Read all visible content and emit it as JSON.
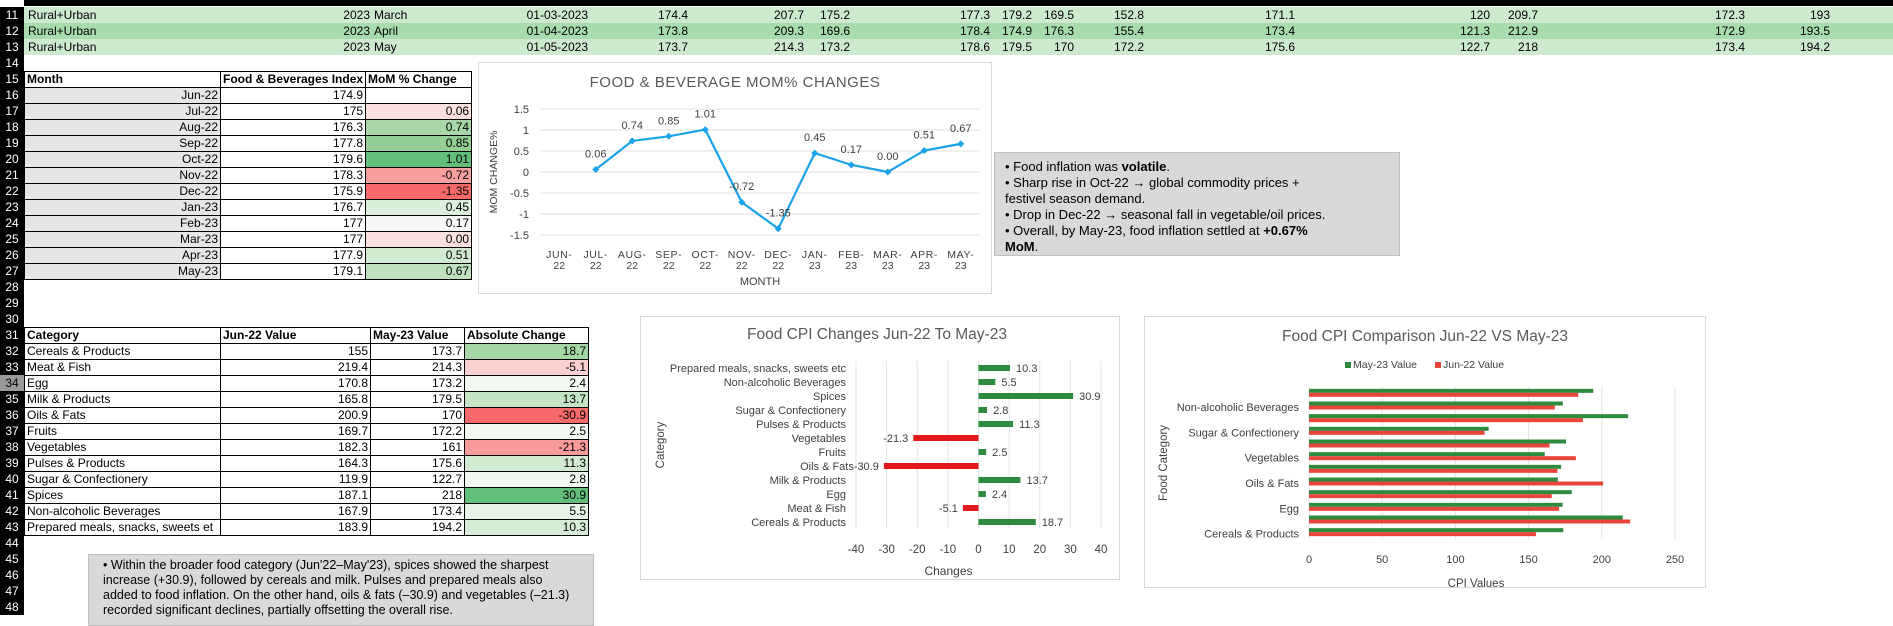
{
  "top_rows": [
    {
      "row": "11",
      "region": "Rural+Urban",
      "year": "2023",
      "month": "March",
      "date": "01-03-2023",
      "v1": "174.4",
      "v2": "207.7",
      "v3": "175.2",
      "v4": "177.3",
      "v5": "179.2",
      "v6": "169.5",
      "v7": "152.8",
      "v8": "171.1",
      "v9": "120",
      "v10": "209.7",
      "v11": "172.3",
      "v12": "193"
    },
    {
      "row": "12",
      "region": "Rural+Urban",
      "year": "2023",
      "month": "April",
      "date": "01-04-2023",
      "v1": "173.8",
      "v2": "209.3",
      "v3": "169.6",
      "v4": "178.4",
      "v5": "174.9",
      "v6": "176.3",
      "v7": "155.4",
      "v8": "173.4",
      "v9": "121.3",
      "v10": "212.9",
      "v11": "172.9",
      "v12": "193.5"
    },
    {
      "row": "13",
      "region": "Rural+Urban",
      "year": "2023",
      "month": "May",
      "date": "01-05-2023",
      "v1": "173.7",
      "v2": "214.3",
      "v3": "173.2",
      "v4": "178.6",
      "v5": "179.5",
      "v6": "170",
      "v7": "172.2",
      "v8": "175.6",
      "v9": "122.7",
      "v10": "218",
      "v11": "173.4",
      "v12": "194.2"
    }
  ],
  "row_numbers": [
    "11",
    "12",
    "13",
    "14",
    "15",
    "16",
    "17",
    "18",
    "19",
    "20",
    "21",
    "22",
    "23",
    "24",
    "25",
    "26",
    "27",
    "28",
    "29",
    "30",
    "31",
    "32",
    "33",
    "34",
    "35",
    "36",
    "37",
    "38",
    "39",
    "40",
    "41",
    "42",
    "43",
    "44",
    "45",
    "46",
    "47",
    "48"
  ],
  "mom_table": {
    "headers": [
      "Month",
      "Food & Beverages Index",
      "MoM % Change"
    ],
    "rows": [
      {
        "month": "Jun-22",
        "index": "174.9",
        "mom": "",
        "color": "#ffffff"
      },
      {
        "month": "Jul-22",
        "index": "175",
        "mom": "0.06",
        "color": "#fbe0e0"
      },
      {
        "month": "Aug-22",
        "index": "176.3",
        "mom": "0.74",
        "color": "#a9d7a9"
      },
      {
        "month": "Sep-22",
        "index": "177.8",
        "mom": "0.85",
        "color": "#94ce95"
      },
      {
        "month": "Oct-22",
        "index": "179.6",
        "mom": "1.01",
        "color": "#63be7b"
      },
      {
        "month": "Nov-22",
        "index": "178.3",
        "mom": "-0.72",
        "color": "#f8a0a0"
      },
      {
        "month": "Dec-22",
        "index": "175.9",
        "mom": "-1.35",
        "color": "#f8696b"
      },
      {
        "month": "Jan-23",
        "index": "176.7",
        "mom": "0.45",
        "color": "#dcefdc"
      },
      {
        "month": "Feb-23",
        "index": "177",
        "mom": "0.17",
        "color": "#f7f7f7"
      },
      {
        "month": "Mar-23",
        "index": "177",
        "mom": "0.00",
        "color": "#fbe0e0"
      },
      {
        "month": "Apr-23",
        "index": "177.9",
        "mom": "0.51",
        "color": "#d2ead2"
      },
      {
        "month": "May-23",
        "index": "179.1",
        "mom": "0.67",
        "color": "#bfe1bf"
      }
    ]
  },
  "cat_table": {
    "headers": [
      "Category",
      "Jun-22 Value",
      "May-23 Value",
      "Absolute Change"
    ],
    "rows": [
      {
        "cat": "Cereals & Products",
        "jun": "155",
        "may": "173.7",
        "chg": "18.7",
        "color": "#a4d6a6"
      },
      {
        "cat": "Meat & Fish",
        "jun": "219.4",
        "may": "214.3",
        "chg": "-5.1",
        "color": "#fbd0d0"
      },
      {
        "cat": "Egg",
        "jun": "170.8",
        "may": "173.2",
        "chg": "2.4",
        "color": "#f3f8f3"
      },
      {
        "cat": "Milk & Products",
        "jun": "165.8",
        "may": "179.5",
        "chg": "13.7",
        "color": "#c5e5c6"
      },
      {
        "cat": "Oils & Fats",
        "jun": "200.9",
        "may": "170",
        "chg": "-30.9",
        "color": "#f8696b"
      },
      {
        "cat": "Fruits",
        "jun": "169.7",
        "may": "172.2",
        "chg": "2.5",
        "color": "#f2f8f2"
      },
      {
        "cat": "Vegetables",
        "jun": "182.3",
        "may": "161",
        "chg": "-21.3",
        "color": "#f99a9b"
      },
      {
        "cat": "Pulses & Products",
        "jun": "164.3",
        "may": "175.6",
        "chg": "11.3",
        "color": "#d1ead1"
      },
      {
        "cat": "Sugar & Confectionery",
        "jun": "119.9",
        "may": "122.7",
        "chg": "2.8",
        "color": "#f1f8f1"
      },
      {
        "cat": "Spices",
        "jun": "187.1",
        "may": "218",
        "chg": "30.9",
        "color": "#63be7b"
      },
      {
        "cat": "Non-alcoholic Beverages",
        "jun": "167.9",
        "may": "173.4",
        "chg": "5.5",
        "color": "#e6f3e6"
      },
      {
        "cat": "Prepared meals, snacks, sweets et",
        "jun": "183.9",
        "may": "194.2",
        "chg": "10.3",
        "color": "#d6ecd6"
      }
    ]
  },
  "note1": {
    "lines": [
      {
        "pre": "• Food inflation was ",
        "bold": "volatile",
        "post": "."
      },
      {
        "pre": "• Sharp rise in Oct-22 → global commodity prices +",
        "bold": "",
        "post": ""
      },
      {
        "pre": "festivel season demand.",
        "bold": "",
        "post": ""
      },
      {
        "pre": "• Drop in Dec-22 → seasonal fall in vegetable/oil prices.",
        "bold": "",
        "post": ""
      },
      {
        "pre": "• Overall, by May-23, food inflation settled at ",
        "bold": "+0.67%",
        "post": ""
      },
      {
        "pre": "",
        "bold": "MoM",
        "post": "."
      }
    ]
  },
  "note2": {
    "text": "• Within the broader food category (Jun'22–May'23), spices showed the sharpest increase (+30.9), followed by cereals and milk. Pulses and prepared meals also added to food inflation. On the other hand, oils & fats (–30.9) and vegetables (–21.3) recorded significant declines, partially offsetting the overall rise."
  },
  "chart_data": [
    {
      "type": "line",
      "title": "FOOD & BEVERAGE MOM% CHANGES",
      "xlabel": "MONTH",
      "ylabel": "MOM CHANGE%",
      "categories": [
        "JUN-22",
        "JUL-22",
        "AUG-22",
        "SEP-22",
        "OCT-22",
        "NOV-22",
        "DEC-22",
        "JAN-23",
        "FEB-23",
        "MAR-23",
        "APR-23",
        "MAY-23"
      ],
      "values": [
        null,
        0.06,
        0.74,
        0.85,
        1.01,
        -0.72,
        -1.35,
        0.45,
        0.17,
        0.0,
        0.51,
        0.67
      ],
      "labels": [
        "",
        "0.06",
        "0.74",
        "0.85",
        "1.01",
        "-0.72",
        "-1.35",
        "0.45",
        "0.17",
        "0.00",
        "0.51",
        "0.67"
      ],
      "yticks": [
        "1.5",
        "1",
        "0.5",
        "0",
        "-0.5",
        "-1",
        "-1.5"
      ],
      "ylim": [
        -1.5,
        1.5
      ],
      "color": "#1aa3e8"
    },
    {
      "type": "bar",
      "orientation": "horizontal",
      "title": "Food CPI Changes Jun-22 To May-23",
      "xlabel": "Changes",
      "ylabel": "Category",
      "categories": [
        "Prepared meals, snacks, sweets etc",
        "Non-alcoholic Beverages",
        "Spices",
        "Sugar & Confectionery",
        "Pulses & Products",
        "Vegetables",
        "Fruits",
        "Oils & Fats",
        "Milk & Products",
        "Egg",
        "Meat & Fish",
        "Cereals & Products"
      ],
      "values": [
        10.3,
        5.5,
        30.9,
        2.8,
        11.3,
        -21.3,
        2.5,
        -30.9,
        13.7,
        2.4,
        -5.1,
        18.7
      ],
      "labels": [
        "10.3",
        "5.5",
        "30.9",
        "2.8",
        "11.3",
        "-21.3",
        "2.5",
        "-30.9",
        "13.7",
        "2.4",
        "-5.1",
        "18.7"
      ],
      "xticks": [
        "-40",
        "-30",
        "-20",
        "-10",
        "0",
        "10",
        "20",
        "30",
        "40"
      ],
      "xlim": [
        -40,
        40
      ],
      "pos_color": "#2e8b3e",
      "neg_color": "#e31a1c"
    },
    {
      "type": "bar",
      "orientation": "horizontal",
      "title": "Food CPI Comparison Jun-22 VS May-23",
      "xlabel": "CPI Values",
      "ylabel": "Food Category",
      "legend": [
        "May-23 Value",
        "Jun-22 Value"
      ],
      "legend_position": "top",
      "categories": [
        "Prepared meals, snacks, sweets etc",
        "Non-alcoholic Beverages",
        "Spices",
        "Sugar & Confectionery",
        "Pulses & Products",
        "Vegetables",
        "Fruits",
        "Oils & Fats",
        "Milk & Products",
        "Egg",
        "Meat & Fish",
        "Cereals & Products"
      ],
      "shown_category_labels": [
        "Non-alcoholic Beverages",
        "Sugar & Confectionery",
        "Vegetables",
        "Oils & Fats",
        "Egg",
        "Cereals & Products"
      ],
      "series": [
        {
          "name": "May-23 Value",
          "values": [
            194.2,
            173.4,
            218,
            122.7,
            175.6,
            161,
            172.2,
            170,
            179.5,
            173.2,
            214.3,
            173.7
          ],
          "color": "#2e8b3e"
        },
        {
          "name": "Jun-22 Value",
          "values": [
            183.9,
            167.9,
            187.1,
            119.9,
            164.3,
            182.3,
            169.7,
            200.9,
            165.8,
            170.8,
            219.4,
            155
          ],
          "color": "#e8453c"
        }
      ],
      "xticks": [
        "0",
        "50",
        "100",
        "150",
        "200",
        "250"
      ],
      "xlim": [
        0,
        250
      ]
    }
  ]
}
